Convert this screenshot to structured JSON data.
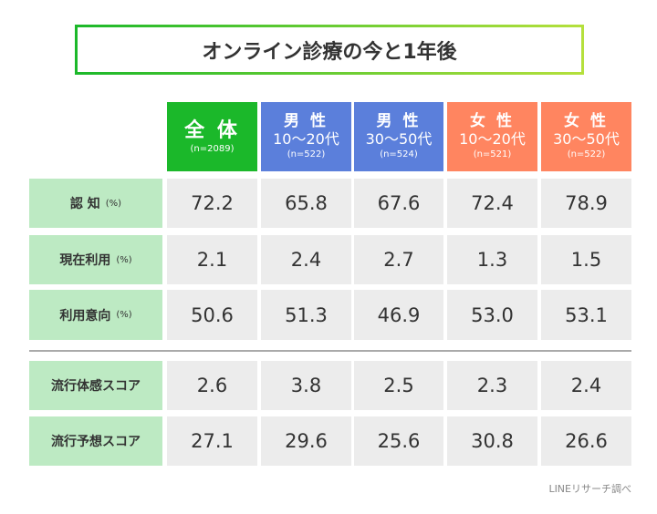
{
  "title": "オンライン診療の今と1年後",
  "columns": [
    {
      "line1": "全 体",
      "line2": "",
      "n": "(n=2089)",
      "color": "#1bb82a"
    },
    {
      "line1": "男 性",
      "line2": "10～20代",
      "n": "(n=522)",
      "color": "#5b7fdb"
    },
    {
      "line1": "男 性",
      "line2": "30～50代",
      "n": "(n=524)",
      "color": "#5b7fdb"
    },
    {
      "line1": "女 性",
      "line2": "10～20代",
      "n": "(n=521)",
      "color": "#ff8560"
    },
    {
      "line1": "女 性",
      "line2": "30～50代",
      "n": "(n=522)",
      "color": "#ff8560"
    }
  ],
  "rows": [
    {
      "label": "認 知",
      "unit": "(%)",
      "values": [
        "72.2",
        "65.8",
        "67.6",
        "72.4",
        "78.9"
      ]
    },
    {
      "label": "現在利用",
      "unit": "(%)",
      "values": [
        "2.1",
        "2.4",
        "2.7",
        "1.3",
        "1.5"
      ]
    },
    {
      "label": "利用意向",
      "unit": "(%)",
      "values": [
        "50.6",
        "51.3",
        "46.9",
        "53.0",
        "53.1"
      ]
    },
    {
      "label": "流行体感スコア",
      "unit": "",
      "values": [
        "2.6",
        "3.8",
        "2.5",
        "2.3",
        "2.4"
      ]
    },
    {
      "label": "流行予想スコア",
      "unit": "",
      "values": [
        "27.1",
        "29.6",
        "25.6",
        "30.8",
        "26.6"
      ]
    }
  ],
  "source": "LINEリサーチ調べ"
}
